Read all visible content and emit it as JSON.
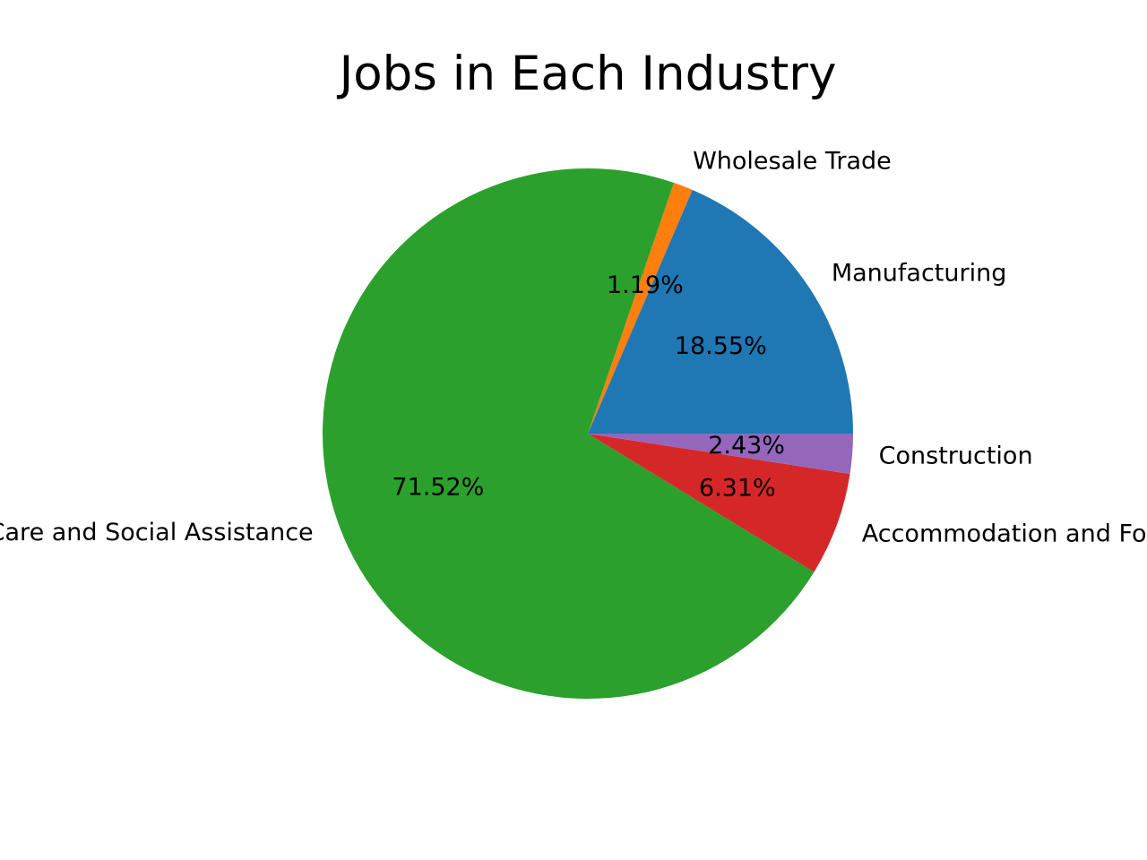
{
  "chart_data": {
    "type": "pie",
    "title": "Jobs in Each Industry",
    "start_angle_deg": 0,
    "direction": "counterclockwise",
    "label_format": "{pct}%",
    "slices": [
      {
        "label": "Manufacturing",
        "value": 18.55,
        "pct_label": "18.55%",
        "color": "#1f77b4"
      },
      {
        "label": "Wholesale Trade",
        "value": 1.19,
        "pct_label": "1.19%",
        "color": "#ff7f0e"
      },
      {
        "label": "Health Care and Social Assistance",
        "value": 71.52,
        "pct_label": "71.52%",
        "color": "#2ca02c"
      },
      {
        "label": "Accommodation and Food Services",
        "value": 6.31,
        "pct_label": "6.31%",
        "color": "#d62728"
      },
      {
        "label": "Construction",
        "value": 2.43,
        "pct_label": "2.43%",
        "color": "#9467bd"
      }
    ]
  }
}
